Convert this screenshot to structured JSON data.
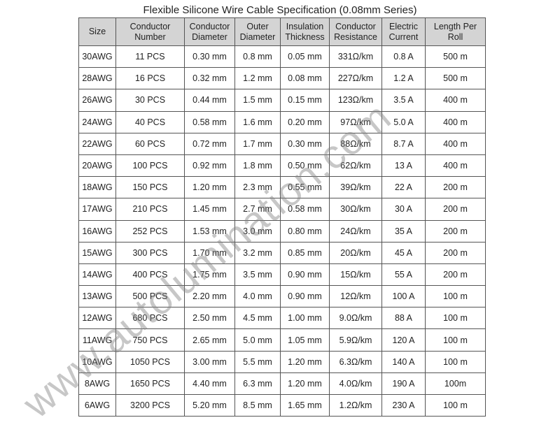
{
  "title": "Flexible Silicone Wire Cable Specification (0.08mm Series)",
  "headers": [
    [
      "Size",
      ""
    ],
    [
      "Conductor",
      "Number"
    ],
    [
      "Conductor",
      "Diameter"
    ],
    [
      "Outer",
      "Diameter"
    ],
    [
      "Insulation",
      "Thickness"
    ],
    [
      "Conductor",
      "Resistance"
    ],
    [
      "Electric",
      "Current"
    ],
    [
      "Length Per",
      "Roll"
    ]
  ],
  "rows": [
    [
      "30AWG",
      "11 PCS",
      "0.30 mm",
      "0.8 mm",
      "0.05 mm",
      "331Ω/km",
      "0.8 A",
      "500 m"
    ],
    [
      "28AWG",
      "16 PCS",
      "0.32 mm",
      "1.2 mm",
      "0.08 mm",
      "227Ω/km",
      "1.2 A",
      "500 m"
    ],
    [
      "26AWG",
      "30 PCS",
      "0.44 mm",
      "1.5 mm",
      "0.15 mm",
      "123Ω/km",
      "3.5 A",
      "400 m"
    ],
    [
      "24AWG",
      "40 PCS",
      "0.58 mm",
      "1.6 mm",
      "0.20 mm",
      "97Ω/km",
      "5.0 A",
      "400 m"
    ],
    [
      "22AWG",
      "60 PCS",
      "0.72 mm",
      "1.7 mm",
      "0.30 mm",
      "88Ω/km",
      "8.7 A",
      "400 m"
    ],
    [
      "20AWG",
      "100 PCS",
      "0.92 mm",
      "1.8 mm",
      "0.50 mm",
      "62Ω/km",
      "13 A",
      "400 m"
    ],
    [
      "18AWG",
      "150 PCS",
      "1.20 mm",
      "2.3 mm",
      "0.55 mm",
      "39Ω/km",
      "22 A",
      "200 m"
    ],
    [
      "17AWG",
      "210 PCS",
      "1.45 mm",
      "2.7 mm",
      "0.58 mm",
      "30Ω/km",
      "30 A",
      "200 m"
    ],
    [
      "16AWG",
      "252 PCS",
      "1.53 mm",
      "3.0 mm",
      "0.80 mm",
      "24Ω/km",
      "35 A",
      "200 m"
    ],
    [
      "15AWG",
      "300 PCS",
      "1.70 mm",
      "3.2 mm",
      "0.85 mm",
      "20Ω/km",
      "45 A",
      "200 m"
    ],
    [
      "14AWG",
      "400 PCS",
      "1.75 mm",
      "3.5 mm",
      "0.90 mm",
      "15Ω/km",
      "55 A",
      "200 m"
    ],
    [
      "13AWG",
      "500 PCS",
      "2.20 mm",
      "4.0 mm",
      "0.90 mm",
      "12Ω/km",
      "100 A",
      "100 m"
    ],
    [
      "12AWG",
      "680 PCS",
      "2.50 mm",
      "4.5 mm",
      "1.00 mm",
      "9.0Ω/km",
      "88 A",
      "100 m"
    ],
    [
      "11AWG",
      "750 PCS",
      "2.65 mm",
      "5.0 mm",
      "1.05 mm",
      "5.9Ω/km",
      "120 A",
      "100 m"
    ],
    [
      "10AWG",
      "1050 PCS",
      "3.00 mm",
      "5.5 mm",
      "1.20 mm",
      "6.3Ω/km",
      "140 A",
      "100 m"
    ],
    [
      "8AWG",
      "1650 PCS",
      "4.40 mm",
      "6.3 mm",
      "1.20 mm",
      "4.0Ω/km",
      "190 A",
      "100m"
    ],
    [
      "6AWG",
      "3200 PCS",
      "5.20 mm",
      "8.5 mm",
      "1.65 mm",
      "1.2Ω/km",
      "230 A",
      "100 m"
    ]
  ],
  "watermark": "www.autolumination.com"
}
